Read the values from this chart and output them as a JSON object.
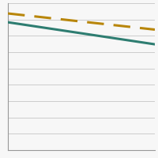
{
  "dashed_line": {
    "x": [
      0,
      1
    ],
    "y": [
      0.93,
      0.82
    ],
    "color": "#B8860B",
    "linewidth": 2.2,
    "dashes": [
      7,
      4
    ]
  },
  "solid_line": {
    "x": [
      0,
      1
    ],
    "y": [
      0.87,
      0.72
    ],
    "color": "#2E7D71",
    "linewidth": 2.2
  },
  "ylim": [
    0.0,
    1.0
  ],
  "xlim": [
    0.0,
    1.0
  ],
  "background_color": "#f7f7f7",
  "grid_color": "#cccccc",
  "grid_linewidth": 0.7,
  "n_gridlines": 9,
  "border_color": "#999999",
  "border_linewidth": 0.8
}
